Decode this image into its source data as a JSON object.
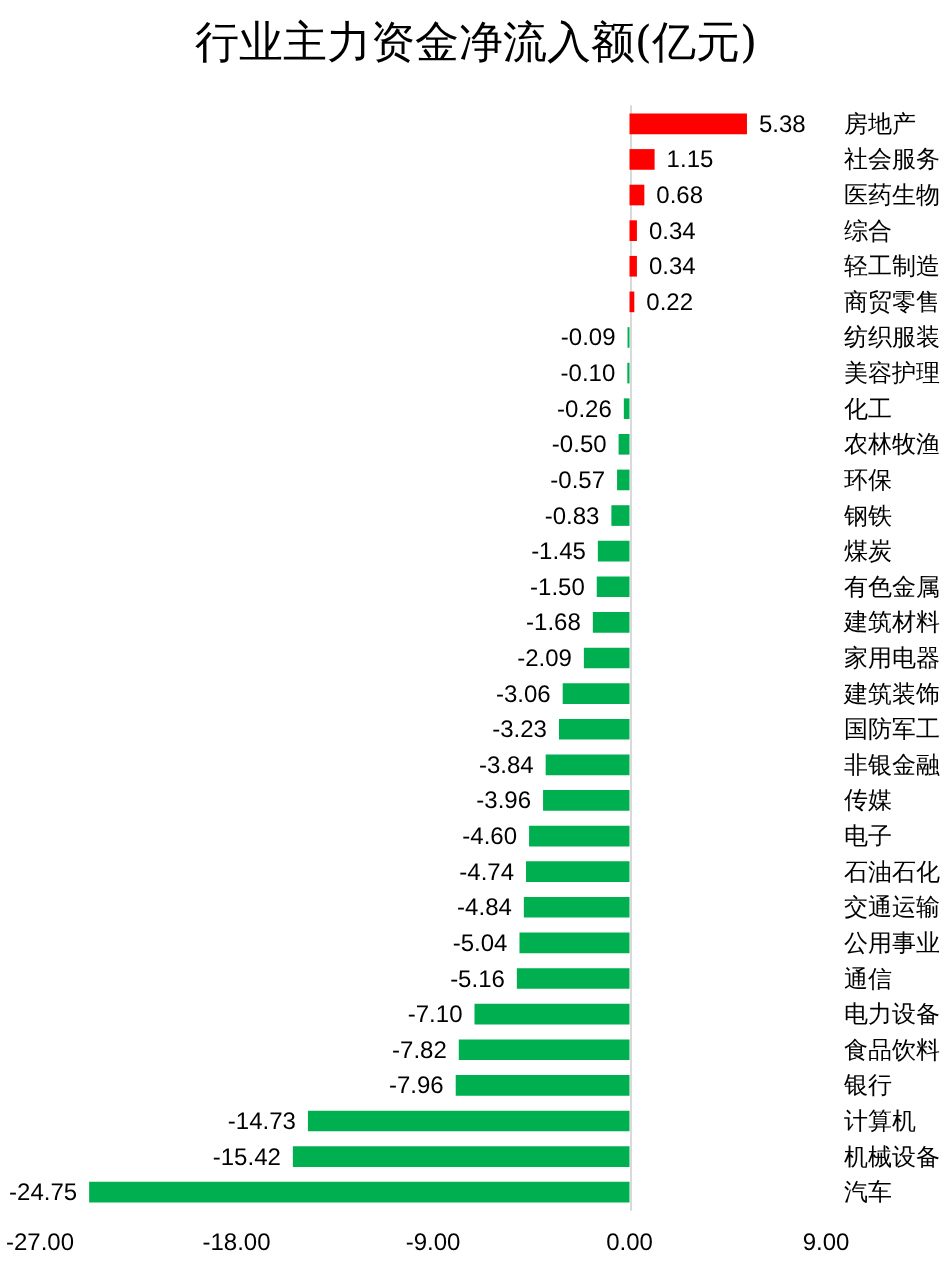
{
  "chart_data": {
    "type": "bar",
    "orientation": "horizontal",
    "title": "行业主力资金净流入额(亿元)",
    "categories": [
      "房地产",
      "社会服务",
      "医药生物",
      "综合",
      "轻工制造",
      "商贸零售",
      "纺织服装",
      "美容护理",
      "化工",
      "农林牧渔",
      "环保",
      "钢铁",
      "煤炭",
      "有色金属",
      "建筑材料",
      "家用电器",
      "建筑装饰",
      "国防军工",
      "非银金融",
      "传媒",
      "电子",
      "石油石化",
      "交通运输",
      "公用事业",
      "通信",
      "电力设备",
      "食品饮料",
      "银行",
      "计算机",
      "机械设备",
      "汽车"
    ],
    "values": [
      5.38,
      1.15,
      0.68,
      0.34,
      0.34,
      0.22,
      -0.09,
      -0.1,
      -0.26,
      -0.5,
      -0.57,
      -0.83,
      -1.45,
      -1.5,
      -1.68,
      -2.09,
      -3.06,
      -3.23,
      -3.84,
      -3.96,
      -4.6,
      -4.74,
      -4.84,
      -5.04,
      -5.16,
      -7.1,
      -7.82,
      -7.96,
      -14.73,
      -15.42,
      -24.75
    ],
    "value_labels": [
      "5.38",
      "1.15",
      "0.68",
      "0.34",
      "0.34",
      "0.22",
      "-0.09",
      "-0.10",
      "-0.26",
      "-0.50",
      "-0.57",
      "-0.83",
      "-1.45",
      "-1.50",
      "-1.68",
      "-2.09",
      "-3.06",
      "-3.23",
      "-3.84",
      "-3.96",
      "-4.60",
      "-4.74",
      "-4.84",
      "-5.04",
      "-5.16",
      "-7.10",
      "-7.82",
      "-7.96",
      "-14.73",
      "-15.42",
      "-24.75"
    ],
    "colors": [
      "#ff0000",
      "#ff0000",
      "#ff0000",
      "#ff0000",
      "#ff0000",
      "#ff0000",
      "#00b050",
      "#00b050",
      "#00b050",
      "#00b050",
      "#00b050",
      "#00b050",
      "#00b050",
      "#00b050",
      "#00b050",
      "#00b050",
      "#00b050",
      "#00b050",
      "#00b050",
      "#00b050",
      "#00b050",
      "#00b050",
      "#00b050",
      "#00b050",
      "#00b050",
      "#00b050",
      "#00b050",
      "#00b050",
      "#00b050",
      "#00b050",
      "#00b050"
    ],
    "xlim": [
      -27,
      9
    ],
    "xticks": [
      {
        "value": -27,
        "label": "-27.00"
      },
      {
        "value": -18,
        "label": "-18.00"
      },
      {
        "value": -9,
        "label": "-9.00"
      },
      {
        "value": 0,
        "label": "0.00"
      },
      {
        "value": 9,
        "label": "9.00"
      }
    ]
  }
}
